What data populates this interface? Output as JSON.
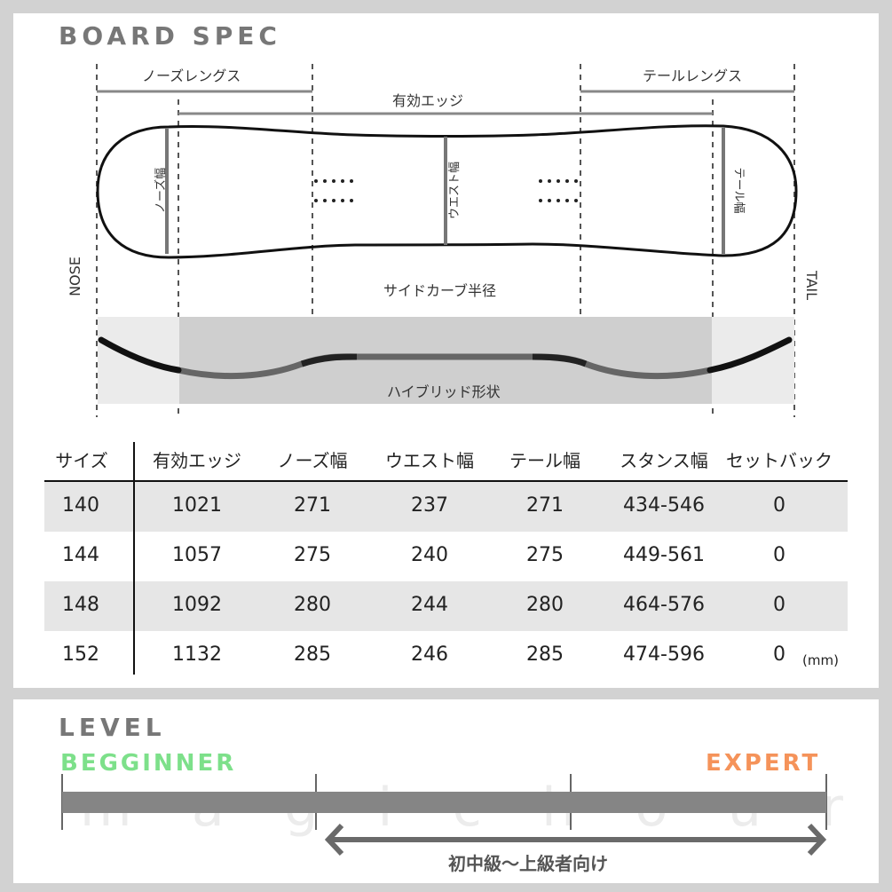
{
  "spec": {
    "title": "BOARD SPEC",
    "nose_length": "ノーズレングス",
    "tail_length": "テールレングス",
    "effective_edge": "有効エッジ",
    "nose_width": "ノーズ幅",
    "waist_width": "ウエスト幅",
    "tail_width": "テール幅",
    "sidecut": "サイドカーブ半径",
    "profile": "ハイブリッド形状",
    "nose": "NOSE",
    "tail": "TAIL"
  },
  "table": {
    "headers": [
      "サイズ",
      "有効エッジ",
      "ノーズ幅",
      "ウエスト幅",
      "テール幅",
      "スタンス幅",
      "セットバック"
    ],
    "rows": [
      [
        "140",
        "1021",
        "271",
        "237",
        "271",
        "434-546",
        "0"
      ],
      [
        "144",
        "1057",
        "275",
        "240",
        "275",
        "449-561",
        "0"
      ],
      [
        "148",
        "1092",
        "280",
        "244",
        "280",
        "464-576",
        "0"
      ],
      [
        "152",
        "1132",
        "285",
        "246",
        "285",
        "474-596",
        "0"
      ]
    ],
    "unit": "(mm)"
  },
  "level": {
    "title": "LEVEL",
    "beginner": "BEGGINNER",
    "expert": "EXPERT",
    "range": "初中級～上級者向け",
    "range_from_segment": 2,
    "range_to_segment": 3,
    "segments": 3,
    "beginner_color": "#7de08a",
    "expert_color": "#f5935a",
    "watermark": "magic hour"
  }
}
